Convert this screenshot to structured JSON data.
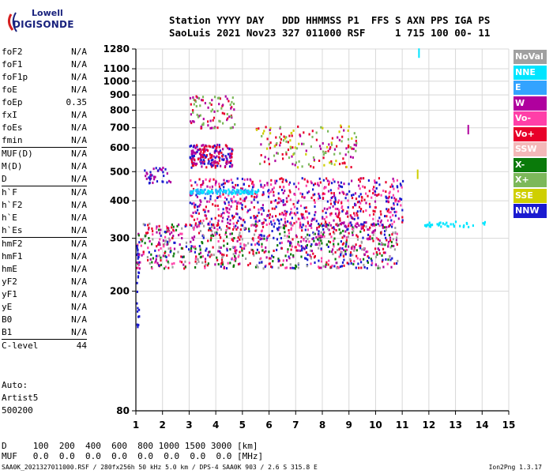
{
  "logo": {
    "top": "Lowell",
    "bottom": "DIGISONDE"
  },
  "header": {
    "line1": "Station YYYY DAY   DDD HHMMSS P1  FFS S AXN PPS IGA PS",
    "line2": "SaoLuis 2021 Nov23 327 011000 RSF     1 715 100 00- 11"
  },
  "params": [
    {
      "label": "foF2",
      "value": "N/A"
    },
    {
      "label": "foF1",
      "value": "N/A"
    },
    {
      "label": "foF1p",
      "value": "N/A"
    },
    {
      "label": "foE",
      "value": "N/A"
    },
    {
      "label": "foEp",
      "value": "0.35"
    },
    {
      "label": "fxI",
      "value": "N/A"
    },
    {
      "label": "foEs",
      "value": "N/A"
    },
    {
      "label": "fmin",
      "value": "N/A"
    },
    {
      "label": "MUF(D)",
      "value": "N/A"
    },
    {
      "label": "M(D)",
      "value": "N/A"
    },
    {
      "label": "D",
      "value": "N/A"
    },
    {
      "label": "h`F",
      "value": "N/A"
    },
    {
      "label": "h`F2",
      "value": "N/A"
    },
    {
      "label": "h`E",
      "value": "N/A"
    },
    {
      "label": "h`Es",
      "value": "N/A"
    },
    {
      "label": "hmF2",
      "value": "N/A"
    },
    {
      "label": "hmF1",
      "value": "N/A"
    },
    {
      "label": "hmE",
      "value": "N/A"
    },
    {
      "label": "yF2",
      "value": "N/A"
    },
    {
      "label": "yF1",
      "value": "N/A"
    },
    {
      "label": "yE",
      "value": "N/A"
    },
    {
      "label": "B0",
      "value": "N/A"
    },
    {
      "label": "B1",
      "value": "N/A"
    },
    {
      "label": "C-level",
      "value": "44"
    }
  ],
  "auto": {
    "line1": "Auto:",
    "line2": "Artist5",
    "line3": "500200"
  },
  "bottom": {
    "d_line": "D     100  200  400  600  800 1000 1500 3000 [km]",
    "muf_line": "MUF   0.0  0.0  0.0  0.0  0.0  0.0  0.0  0.0 [MHz]"
  },
  "footer": {
    "left": "SAA0K_2021327011000.RSF / 280fx256h 50 kHz 5.0 km / DPS-4 SAA0K 903 / 2.6 S 315.8 E",
    "right": "Ion2Png 1.3.17"
  },
  "legend": [
    {
      "label": "NoVal",
      "color": "#a0a0a0"
    },
    {
      "label": "NNE",
      "color": "#00e5ff"
    },
    {
      "label": "E",
      "color": "#33a3ff"
    },
    {
      "label": "W",
      "color": "#b0009e"
    },
    {
      "label": "Vo-",
      "color": "#ff3fa8"
    },
    {
      "label": "Vo+",
      "color": "#e8002a"
    },
    {
      "label": "SSW",
      "color": "#f4b8b8"
    },
    {
      "label": "X-",
      "color": "#0a7a0a"
    },
    {
      "label": "X+",
      "color": "#7cb85a"
    },
    {
      "label": "SSE",
      "color": "#cfcf00"
    },
    {
      "label": "NNW",
      "color": "#1a1ad0"
    }
  ],
  "chart_data": {
    "type": "scatter",
    "xlabel": "",
    "ylabel": "",
    "xlim": [
      1,
      15
    ],
    "ylim": [
      80,
      1280
    ],
    "x_ticks": [
      1,
      2,
      3,
      4,
      5,
      6,
      7,
      8,
      9,
      10,
      11,
      12,
      13,
      14,
      15
    ],
    "y_ticks": [
      80,
      200,
      300,
      400,
      500,
      600,
      700,
      800,
      900,
      1000,
      1100,
      1280
    ],
    "y_scale": "log",
    "grid": true,
    "clusters": [
      {
        "name": "main F trace",
        "x_range": [
          1.0,
          10.8
        ],
        "h_range": [
          240,
          340
        ],
        "colors": [
          "#e8002a",
          "#ff3fa8",
          "#b0009e",
          "#1a1ad0",
          "#a0a0a0",
          "#0a7a0a"
        ]
      },
      {
        "name": "upper F",
        "x_range": [
          3.0,
          11.0
        ],
        "h_range": [
          330,
          480
        ],
        "colors": [
          "#e8002a",
          "#b0009e",
          "#ff3fa8",
          "#1a1ad0"
        ]
      },
      {
        "name": "E echo",
        "x_range": [
          3.0,
          5.6
        ],
        "h_range": [
          425,
          440
        ],
        "colors": [
          "#33a3ff",
          "#00e5ff"
        ]
      },
      {
        "name": "multi-hop",
        "x_range": [
          3.0,
          4.6
        ],
        "h_range": [
          520,
          620
        ],
        "colors": [
          "#b0009e",
          "#1a1ad0",
          "#e8002a"
        ]
      },
      {
        "name": "high echo",
        "x_range": [
          3.0,
          4.7
        ],
        "h_range": [
          700,
          900
        ],
        "colors": [
          "#b0009e",
          "#e8002a",
          "#7cb85a"
        ]
      },
      {
        "name": "scattered",
        "x_range": [
          5.4,
          9.3
        ],
        "h_range": [
          520,
          720
        ],
        "colors": [
          "#e8002a",
          "#b0009e",
          "#cfcf00",
          "#7cb85a"
        ]
      },
      {
        "name": "NNE tail",
        "x_range": [
          11.8,
          14.2
        ],
        "h_range": [
          330,
          345
        ],
        "colors": [
          "#00e5ff"
        ]
      },
      {
        "name": "left spike",
        "x_range": [
          1.0,
          1.1
        ],
        "h_range": [
          150,
          300
        ],
        "colors": [
          "#1a1ad0"
        ]
      },
      {
        "name": "low left",
        "x_range": [
          1.3,
          2.3
        ],
        "h_range": [
          460,
          520
        ],
        "colors": [
          "#1a1ad0",
          "#b0009e"
        ]
      }
    ],
    "isolated_points": [
      {
        "x": 13.45,
        "h": 690,
        "color": "#b0009e"
      },
      {
        "x": 11.6,
        "h": 1240,
        "color": "#00e5ff"
      },
      {
        "x": 11.55,
        "h": 490,
        "color": "#cfcf00"
      }
    ]
  }
}
